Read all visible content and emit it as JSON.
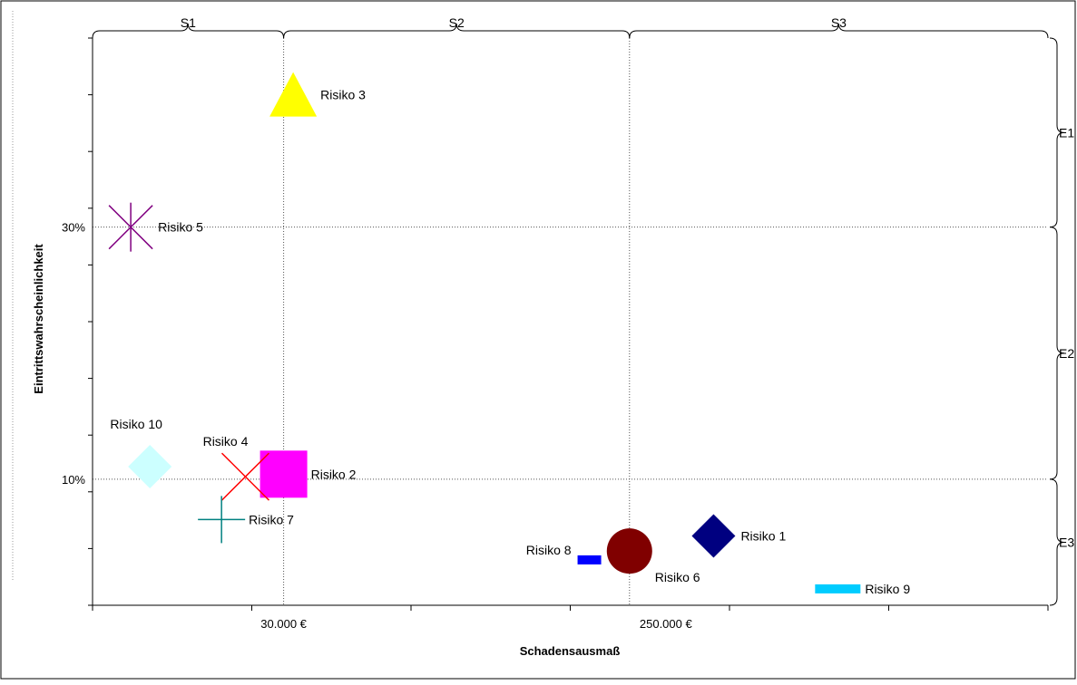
{
  "chart_data": {
    "type": "scatter",
    "title": "",
    "xlabel": "Schadensausmaß",
    "ylabel": "Eintrittswahrscheinlichkeit",
    "x_tick_labels": [
      {
        "label": "30.000 €",
        "x": 2
      },
      {
        "label": "250.000 €",
        "x": 6
      }
    ],
    "y_tick_labels": [
      {
        "label": "10%",
        "y": 10
      },
      {
        "label": "30%",
        "y": 30
      }
    ],
    "xlim": [
      0,
      10
    ],
    "ylim": [
      0,
      45
    ],
    "x_reference_lines": [
      2,
      5.62
    ],
    "y_reference_lines": [
      10,
      30
    ],
    "grid": false,
    "legend": "none",
    "severity_brackets": [
      {
        "label": "S1",
        "from": 0,
        "to": 2
      },
      {
        "label": "S2",
        "from": 2,
        "to": 5.62
      },
      {
        "label": "S3",
        "from": 5.62,
        "to": 10
      }
    ],
    "probability_brackets": [
      {
        "label": "E1",
        "from": 30,
        "to": 45
      },
      {
        "label": "E2",
        "from": 10,
        "to": 30
      },
      {
        "label": "E3",
        "from": 0,
        "to": 10
      }
    ],
    "series": [
      {
        "name": "Risiko 1",
        "x": 6.5,
        "y": 5.5,
        "marker": "diamond",
        "color": "#000080",
        "label_pos": "right"
      },
      {
        "name": "Risiko 2",
        "x": 2,
        "y": 10.4,
        "marker": "square",
        "color": "#ff00ff",
        "label_pos": "right"
      },
      {
        "name": "Risiko 3",
        "x": 2.1,
        "y": 40.5,
        "marker": "triangle",
        "color": "#ffff00",
        "label_pos": "right"
      },
      {
        "name": "Risiko 4",
        "x": 1.6,
        "y": 10.2,
        "marker": "x",
        "color": "#ff0000",
        "label_pos": "above-left"
      },
      {
        "name": "Risiko 5",
        "x": 0.4,
        "y": 30,
        "marker": "star",
        "color": "#800080",
        "label_pos": "right"
      },
      {
        "name": "Risiko 6",
        "x": 5.62,
        "y": 4.3,
        "marker": "circle",
        "color": "#800000",
        "label_pos": "below-right"
      },
      {
        "name": "Risiko 7",
        "x": 1.35,
        "y": 6.8,
        "marker": "plus",
        "color": "#008080",
        "label_pos": "right"
      },
      {
        "name": "Risiko 8",
        "x": 5.2,
        "y": 3.6,
        "marker": "dash",
        "color": "#0000ff",
        "label_pos": "left"
      },
      {
        "name": "Risiko 9",
        "x": 7.8,
        "y": 1.3,
        "marker": "dash",
        "color": "#00ccff",
        "label_pos": "right"
      },
      {
        "name": "Risiko 10",
        "x": 0.6,
        "y": 11,
        "marker": "diamond",
        "color": "#ccffff",
        "label_pos": "above"
      }
    ]
  }
}
